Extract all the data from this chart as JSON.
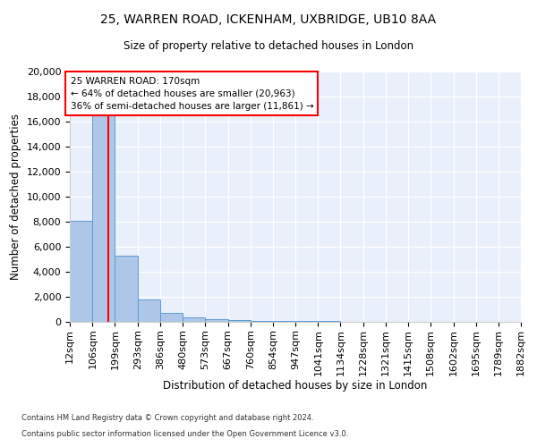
{
  "title1": "25, WARREN ROAD, ICKENHAM, UXBRIDGE, UB10 8AA",
  "title2": "Size of property relative to detached houses in London",
  "xlabel": "Distribution of detached houses by size in London",
  "ylabel": "Number of detached properties",
  "bar_edges": [
    12,
    106,
    199,
    293,
    386,
    480,
    573,
    667,
    760,
    854,
    947,
    1041,
    1134,
    1228,
    1321,
    1415,
    1508,
    1602,
    1695,
    1789,
    1882
  ],
  "bar_heights": [
    8050,
    16620,
    5290,
    1800,
    700,
    350,
    220,
    140,
    95,
    70,
    55,
    42,
    33,
    25,
    18,
    13,
    10,
    7,
    5,
    3
  ],
  "bar_color": "#aec6e8",
  "bar_edge_color": "#5b9bd5",
  "red_line_x": 170,
  "annotation_line1": "25 WARREN ROAD: 170sqm",
  "annotation_line2": "← 64% of detached houses are smaller (20,963)",
  "annotation_line3": "36% of semi-detached houses are larger (11,861) →",
  "ylim": [
    0,
    20000
  ],
  "yticks": [
    0,
    2000,
    4000,
    6000,
    8000,
    10000,
    12000,
    14000,
    16000,
    18000,
    20000
  ],
  "footnote1": "Contains HM Land Registry data © Crown copyright and database right 2024.",
  "footnote2": "Contains public sector information licensed under the Open Government Licence v3.0.",
  "plot_bg_color": "#eaf0fb"
}
